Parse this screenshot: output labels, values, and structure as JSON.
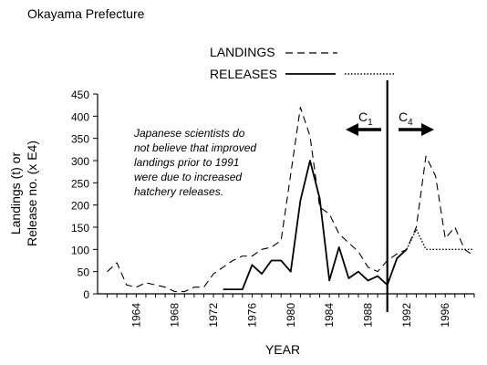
{
  "chart_data": {
    "type": "line",
    "title": "Okayama Prefecture",
    "xlabel": "YEAR",
    "ylabel": [
      "Landings (t) or",
      "Release no. (x E4)"
    ],
    "xlim": [
      1960,
      1999
    ],
    "ylim": [
      0,
      450
    ],
    "yticks": [
      0,
      50,
      100,
      150,
      200,
      250,
      300,
      350,
      400,
      450
    ],
    "xticks": [
      1964,
      1968,
      1972,
      1976,
      1980,
      1984,
      1988,
      1992,
      1996
    ],
    "grid": false,
    "legend": "top",
    "legend_entries": {
      "landings": "LANDINGS",
      "releases": "RELEASES"
    },
    "annotation": [
      "Japanese scientists do",
      "not believe that improved",
      "landings prior to 1991",
      "were due to increased",
      "hatchery releases."
    ],
    "c1_label": {
      "main": "C",
      "sub": "1"
    },
    "c4_label": {
      "main": "C",
      "sub": "4"
    },
    "divider_year": 1990,
    "series": [
      {
        "name": "LANDINGS",
        "style": "dashed",
        "x": [
          1961,
          1962,
          1963,
          1964,
          1965,
          1966,
          1967,
          1968,
          1969,
          1970,
          1971,
          1972,
          1973,
          1974,
          1975,
          1976,
          1977,
          1978,
          1979,
          1980,
          1981,
          1982,
          1983,
          1984,
          1985,
          1986,
          1987,
          1988,
          1989,
          1990,
          1991,
          1992,
          1993,
          1994,
          1995,
          1996,
          1997,
          1998,
          1999
        ],
        "y": [
          50,
          70,
          20,
          15,
          25,
          20,
          15,
          5,
          5,
          15,
          15,
          45,
          60,
          75,
          85,
          85,
          100,
          105,
          120,
          270,
          420,
          355,
          195,
          180,
          135,
          115,
          95,
          60,
          50,
          75,
          90,
          100,
          150,
          310,
          265,
          125,
          150,
          100,
          85
        ]
      },
      {
        "name": "RELEASES",
        "style": "solid",
        "x": [
          1973,
          1974,
          1975,
          1976,
          1977,
          1978,
          1979,
          1980,
          1981,
          1982,
          1983,
          1984,
          1985,
          1986,
          1987,
          1988,
          1989,
          1990,
          1991,
          1992
        ],
        "y": [
          10,
          10,
          10,
          65,
          45,
          75,
          75,
          50,
          210,
          300,
          215,
          30,
          105,
          35,
          50,
          30,
          40,
          20,
          80,
          100
        ]
      },
      {
        "name": "RELEASES",
        "style": "dotted",
        "x": [
          1992,
          1993,
          1994,
          1995,
          1996,
          1997,
          1998,
          1999
        ],
        "y": [
          100,
          145,
          100,
          100,
          100,
          100,
          100,
          100
        ]
      }
    ]
  }
}
